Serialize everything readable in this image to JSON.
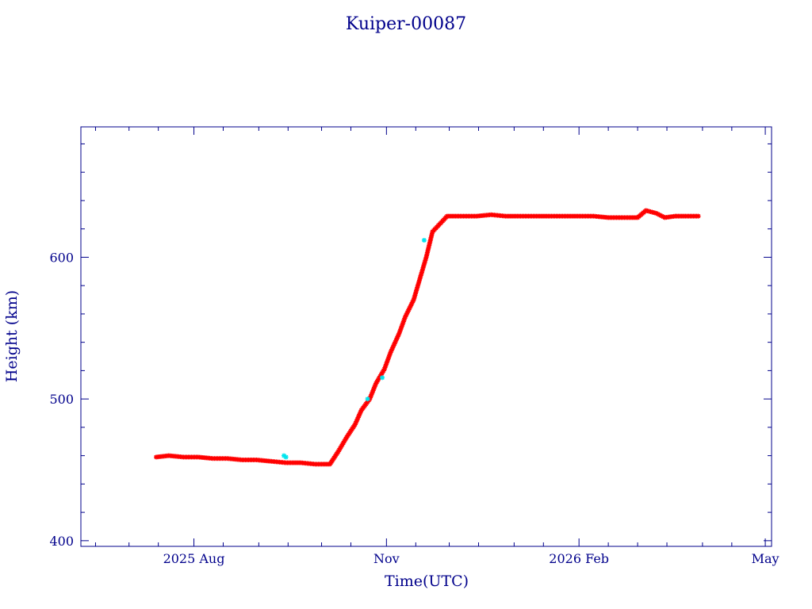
{
  "chart_data": {
    "type": "scatter",
    "title": "Kuiper-00087",
    "xlabel": "Time(UTC)",
    "ylabel": "Height (km)",
    "x_tick_labels": [
      "2025 Aug",
      "Nov",
      "2026 Feb",
      "May"
    ],
    "x_ticks": [
      "2025-08-01",
      "2025-11-01",
      "2026-02-01",
      "2026-05-01"
    ],
    "y_tick_labels": [
      "400",
      "500",
      "600"
    ],
    "y_ticks": [
      400,
      500,
      600
    ],
    "xlim": [
      "2025-06-08",
      "2026-05-04"
    ],
    "ylim": [
      396,
      692
    ],
    "grid": false,
    "legend": "none",
    "colors": {
      "axis": "#00008b",
      "series_main": "#ff0000",
      "series_alt": "#00e5ee"
    },
    "series": [
      {
        "marker": "star",
        "color": "#ff0000",
        "x": [
          "2025-07-14",
          "2025-07-20",
          "2025-07-27",
          "2025-08-03",
          "2025-08-10",
          "2025-08-17",
          "2025-08-24",
          "2025-08-31",
          "2025-09-07",
          "2025-09-14",
          "2025-09-21",
          "2025-09-28",
          "2025-10-05",
          "2025-10-09",
          "2025-10-13",
          "2025-10-17",
          "2025-10-20",
          "2025-10-24",
          "2025-10-27",
          "2025-10-31",
          "2025-11-03",
          "2025-11-07",
          "2025-11-10",
          "2025-11-14",
          "2025-11-17",
          "2025-11-20",
          "2025-11-23",
          "2025-11-30",
          "2025-12-07",
          "2025-12-14",
          "2025-12-21",
          "2025-12-28",
          "2026-01-04",
          "2026-01-11",
          "2026-01-18",
          "2026-01-25",
          "2026-02-01",
          "2026-02-08",
          "2026-02-15",
          "2026-02-22",
          "2026-03-01",
          "2026-03-05",
          "2026-03-10",
          "2026-03-14",
          "2026-03-19",
          "2026-03-24",
          "2026-03-30"
        ],
        "y": [
          459,
          460,
          459,
          459,
          458,
          458,
          457,
          457,
          456,
          455,
          455,
          454,
          454,
          463,
          473,
          482,
          492,
          500,
          511,
          521,
          533,
          546,
          558,
          570,
          585,
          600,
          618,
          629,
          629,
          629,
          630,
          629,
          629,
          629,
          629,
          629,
          629,
          629,
          628,
          628,
          628,
          633,
          631,
          628,
          629,
          629,
          629
        ]
      },
      {
        "marker": "star",
        "color": "#00e5ee",
        "x": [
          "2025-09-13",
          "2025-09-14",
          "2025-10-23",
          "2025-10-30",
          "2025-11-19"
        ],
        "y": [
          460,
          459,
          500,
          515,
          612
        ]
      }
    ]
  }
}
